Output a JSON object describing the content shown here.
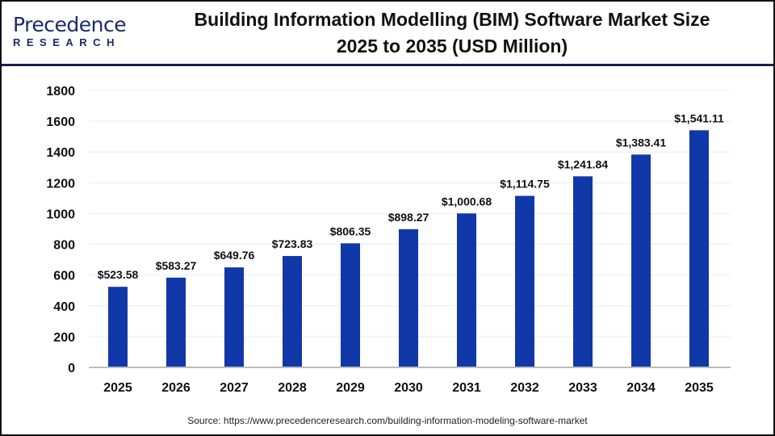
{
  "logo": {
    "line1": "Precedence",
    "line2": "RESEARCH"
  },
  "title_lines": [
    "Building Information Modelling (BIM) Software Market Size",
    "2025 to 2035 (USD Million)"
  ],
  "source": "Source: https://www.precedenceresearch.com/building-information-modeling-software-market",
  "chart_data": {
    "type": "bar",
    "title": "Building Information Modelling (BIM) Software Market Size 2025 to 2035 (USD Million)",
    "categories": [
      "2025",
      "2026",
      "2027",
      "2028",
      "2029",
      "2030",
      "2031",
      "2032",
      "2033",
      "2034",
      "2035"
    ],
    "values": [
      523.58,
      583.27,
      649.76,
      723.83,
      806.35,
      898.27,
      1000.68,
      1114.75,
      1241.84,
      1383.41,
      1541.11
    ],
    "data_labels": [
      "$523.58",
      "$583.27",
      "$649.76",
      "$723.83",
      "$806.35",
      "$898.27",
      "$1,000.68",
      "$1,114.75",
      "$1,241.84",
      "$1,383.41",
      "$1,541.11"
    ],
    "yticks": [
      0,
      200,
      400,
      600,
      800,
      1000,
      1200,
      1400,
      1600,
      1800
    ],
    "ylim": [
      0,
      1800
    ],
    "grid": true,
    "bar_color": "#1038a8"
  }
}
